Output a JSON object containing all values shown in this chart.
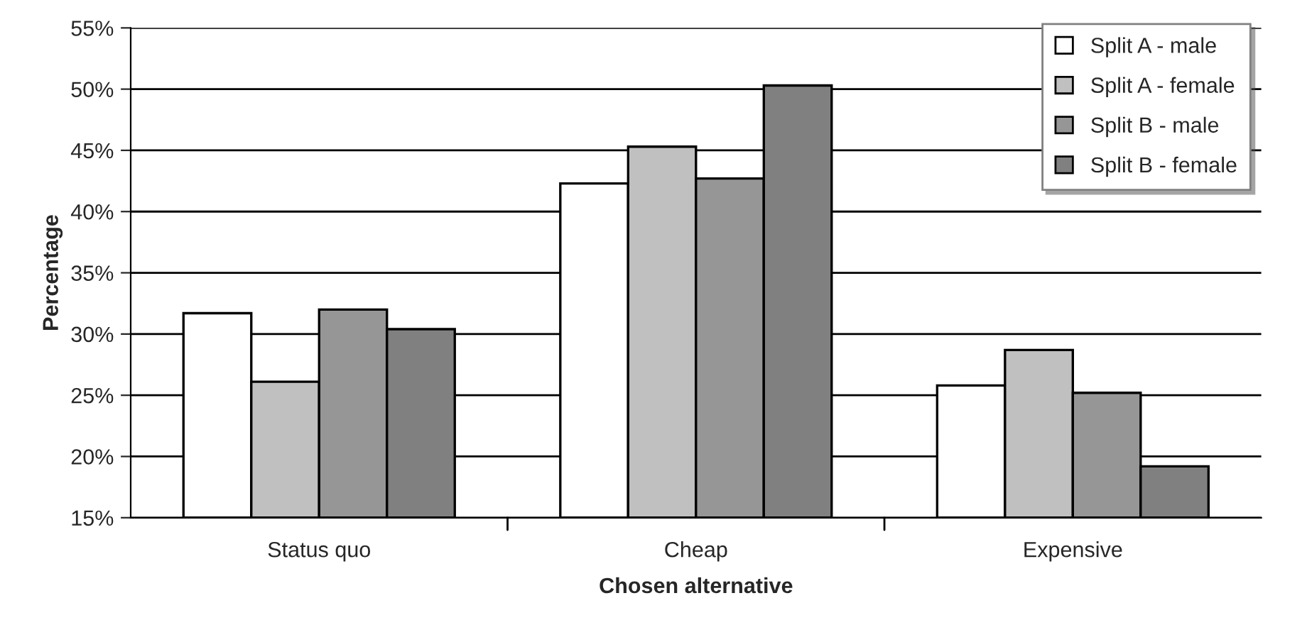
{
  "chart_data": {
    "type": "bar",
    "xlabel": "Chosen alternative",
    "ylabel": "Percentage",
    "categories": [
      "Status quo",
      "Cheap",
      "Expensive"
    ],
    "series": [
      {
        "name": "Split A - male",
        "color": "#ffffff",
        "values": [
          31.7,
          42.3,
          25.8
        ]
      },
      {
        "name": "Split A - female",
        "color": "#c0c0c0",
        "values": [
          26.1,
          45.3,
          28.7
        ]
      },
      {
        "name": "Split B - male",
        "color": "#969696",
        "values": [
          32.0,
          42.7,
          25.2
        ]
      },
      {
        "name": "Split B - female",
        "color": "#808080",
        "values": [
          30.4,
          50.3,
          19.2
        ]
      }
    ],
    "ylim": [
      15,
      55
    ],
    "yticks": [
      {
        "value": 15,
        "label": "15%"
      },
      {
        "value": 20,
        "label": "20%"
      },
      {
        "value": 25,
        "label": "25%"
      },
      {
        "value": 30,
        "label": "30%"
      },
      {
        "value": 35,
        "label": "35%"
      },
      {
        "value": 40,
        "label": "40%"
      },
      {
        "value": 45,
        "label": "45%"
      },
      {
        "value": 50,
        "label": "50%"
      },
      {
        "value": 55,
        "label": "55%"
      }
    ],
    "grid": "y",
    "legend": "top right"
  }
}
